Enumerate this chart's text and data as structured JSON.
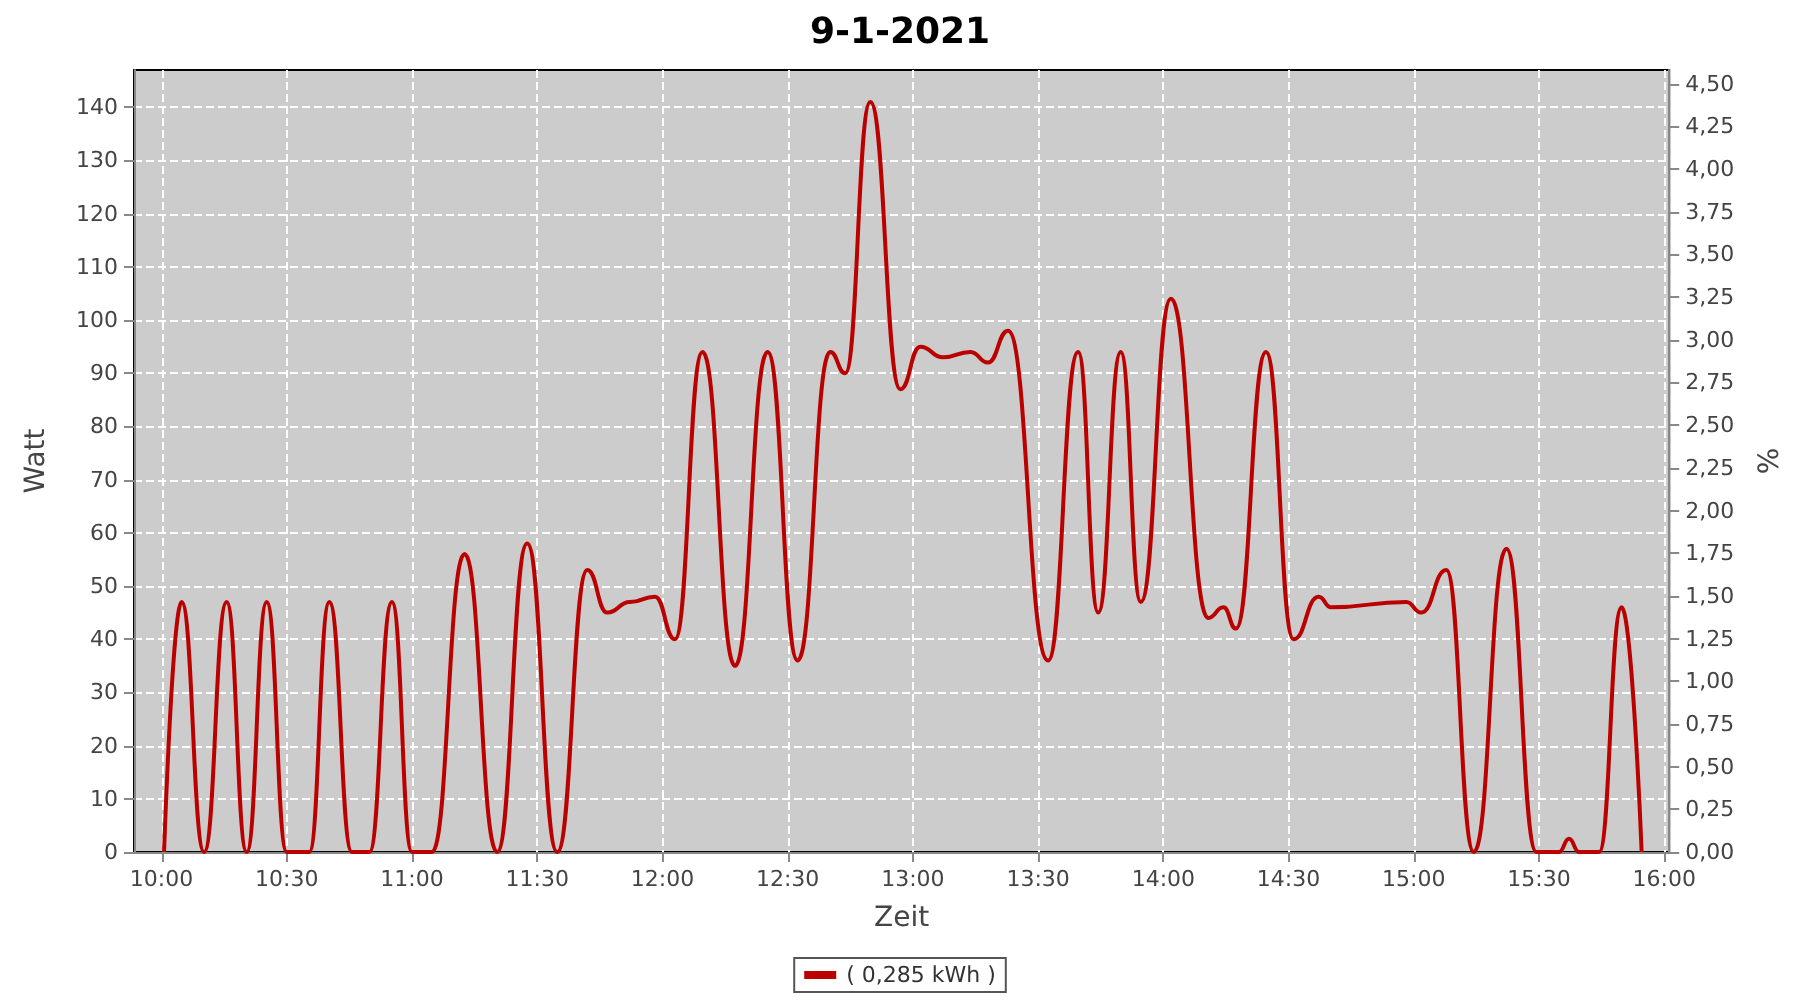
{
  "chart_data": {
    "type": "line",
    "title": "9-1-2021",
    "xlabel": "Zeit",
    "ylabel": "Watt",
    "y2label": "%",
    "x": [
      10.01,
      10.08,
      10.17,
      10.26,
      10.34,
      10.42,
      10.5,
      10.59,
      10.67,
      10.76,
      10.83,
      10.92,
      11.0,
      11.08,
      11.21,
      11.34,
      11.46,
      11.58,
      11.7,
      11.78,
      11.87,
      11.97,
      12.05,
      12.16,
      12.29,
      12.42,
      12.54,
      12.67,
      12.73,
      12.83,
      12.95,
      13.03,
      13.12,
      13.23,
      13.3,
      13.38,
      13.54,
      13.66,
      13.74,
      13.83,
      13.91,
      14.03,
      14.18,
      14.24,
      14.29,
      14.41,
      14.52,
      14.62,
      14.67,
      14.97,
      15.03,
      15.13,
      15.24,
      15.37,
      15.49,
      15.58,
      15.62,
      15.66,
      15.74,
      15.83,
      15.91
    ],
    "series": [
      {
        "name": "( 0,285 kWh )",
        "color": "#bb0000",
        "values": [
          0,
          47,
          0,
          47,
          0,
          47,
          0,
          0,
          47,
          0,
          0,
          47,
          0,
          0,
          56,
          0,
          58,
          0,
          53,
          45,
          47,
          48,
          40,
          94,
          35,
          94,
          36,
          94,
          90,
          141,
          87,
          95,
          93,
          94,
          92,
          98,
          36,
          94,
          45,
          94,
          47,
          104,
          44,
          46,
          42,
          94,
          40,
          48,
          46,
          47,
          45,
          53,
          0,
          57,
          0,
          0,
          2.5,
          0,
          0,
          46,
          0
        ]
      }
    ],
    "xlim": [
      9.89,
      16.02
    ],
    "xticks": [
      {
        "value": 10,
        "label": "10:00"
      },
      {
        "value": 10.5,
        "label": "10:30"
      },
      {
        "value": 11,
        "label": "11:00"
      },
      {
        "value": 11.5,
        "label": "11:30"
      },
      {
        "value": 12,
        "label": "12:00"
      },
      {
        "value": 12.5,
        "label": "12:30"
      },
      {
        "value": 13,
        "label": "13:00"
      },
      {
        "value": 13.5,
        "label": "13:30"
      },
      {
        "value": 14,
        "label": "14:00"
      },
      {
        "value": 14.5,
        "label": "14:30"
      },
      {
        "value": 15,
        "label": "15:00"
      },
      {
        "value": 15.5,
        "label": "15:30"
      },
      {
        "value": 16,
        "label": "16:00"
      }
    ],
    "ylim": [
      0,
      147
    ],
    "yticks": [
      0,
      10,
      20,
      30,
      40,
      50,
      60,
      70,
      80,
      90,
      100,
      110,
      120,
      130,
      140
    ],
    "y2lim": [
      0,
      4.58
    ],
    "y2ticks": [
      {
        "value": 0,
        "label": "0,00"
      },
      {
        "value": 0.25,
        "label": "0,25"
      },
      {
        "value": 0.5,
        "label": "0,50"
      },
      {
        "value": 0.75,
        "label": "0,75"
      },
      {
        "value": 1,
        "label": "1,00"
      },
      {
        "value": 1.25,
        "label": "1,25"
      },
      {
        "value": 1.5,
        "label": "1,50"
      },
      {
        "value": 1.75,
        "label": "1,75"
      },
      {
        "value": 2,
        "label": "2,00"
      },
      {
        "value": 2.25,
        "label": "2,25"
      },
      {
        "value": 2.5,
        "label": "2,50"
      },
      {
        "value": 2.75,
        "label": "2,75"
      },
      {
        "value": 3,
        "label": "3,00"
      },
      {
        "value": 3.25,
        "label": "3,25"
      },
      {
        "value": 3.5,
        "label": "3,50"
      },
      {
        "value": 3.75,
        "label": "3,75"
      },
      {
        "value": 4,
        "label": "4,00"
      },
      {
        "value": 4.25,
        "label": "4,25"
      },
      {
        "value": 4.5,
        "label": "4,50"
      }
    ],
    "grid": true,
    "legend": "bottom",
    "marker": "none",
    "line_style": "solid"
  }
}
